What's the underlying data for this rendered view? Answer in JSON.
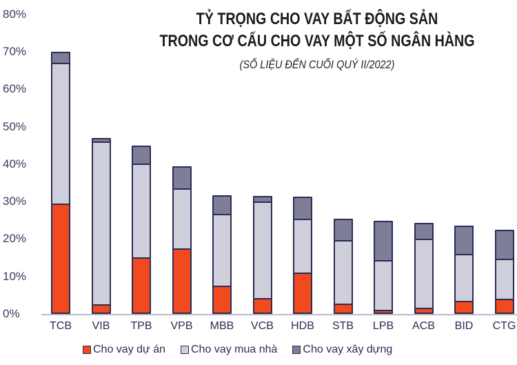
{
  "chart_data": {
    "type": "bar",
    "stacked": true,
    "title": "TỶ TRỌNG CHO VAY BẤT ĐỘNG SẢN",
    "title_line2": "TRONG CƠ CẤU CHO VAY MỘT SỐ NGÂN HÀNG",
    "subtitle": "(SỐ LIỆU ĐẾN CUỐI QUÝ II/2022)",
    "xlabel": "",
    "ylabel": "",
    "ylim": [
      0,
      80
    ],
    "yticks": [
      "0%",
      "10%",
      "20%",
      "30%",
      "40%",
      "50%",
      "60%",
      "70%",
      "80%"
    ],
    "grid": false,
    "legend_position": "bottom",
    "categories": [
      "TCB",
      "VIB",
      "TPB",
      "VPB",
      "MBB",
      "VCB",
      "HDB",
      "STB",
      "LPB",
      "ACB",
      "BID",
      "CTG"
    ],
    "series": [
      {
        "name": "Cho vay dự án",
        "color": "#f04a1e",
        "values": [
          29.0,
          1.8,
          14.7,
          17.0,
          7.0,
          3.6,
          10.5,
          2.0,
          0.3,
          1.0,
          2.8,
          3.5
        ]
      },
      {
        "name": "Cho vay mua nhà",
        "color": "#cfcfdb",
        "values": [
          38.0,
          44.2,
          25.3,
          16.5,
          19.5,
          26.4,
          14.8,
          17.5,
          13.7,
          19.0,
          13.0,
          11.0
        ]
      },
      {
        "name": "Cho vay xây dựng",
        "color": "#7e7e98",
        "values": [
          3.0,
          1.0,
          5.0,
          6.0,
          5.2,
          1.5,
          6.0,
          6.0,
          10.8,
          4.3,
          7.7,
          7.9
        ]
      }
    ]
  }
}
